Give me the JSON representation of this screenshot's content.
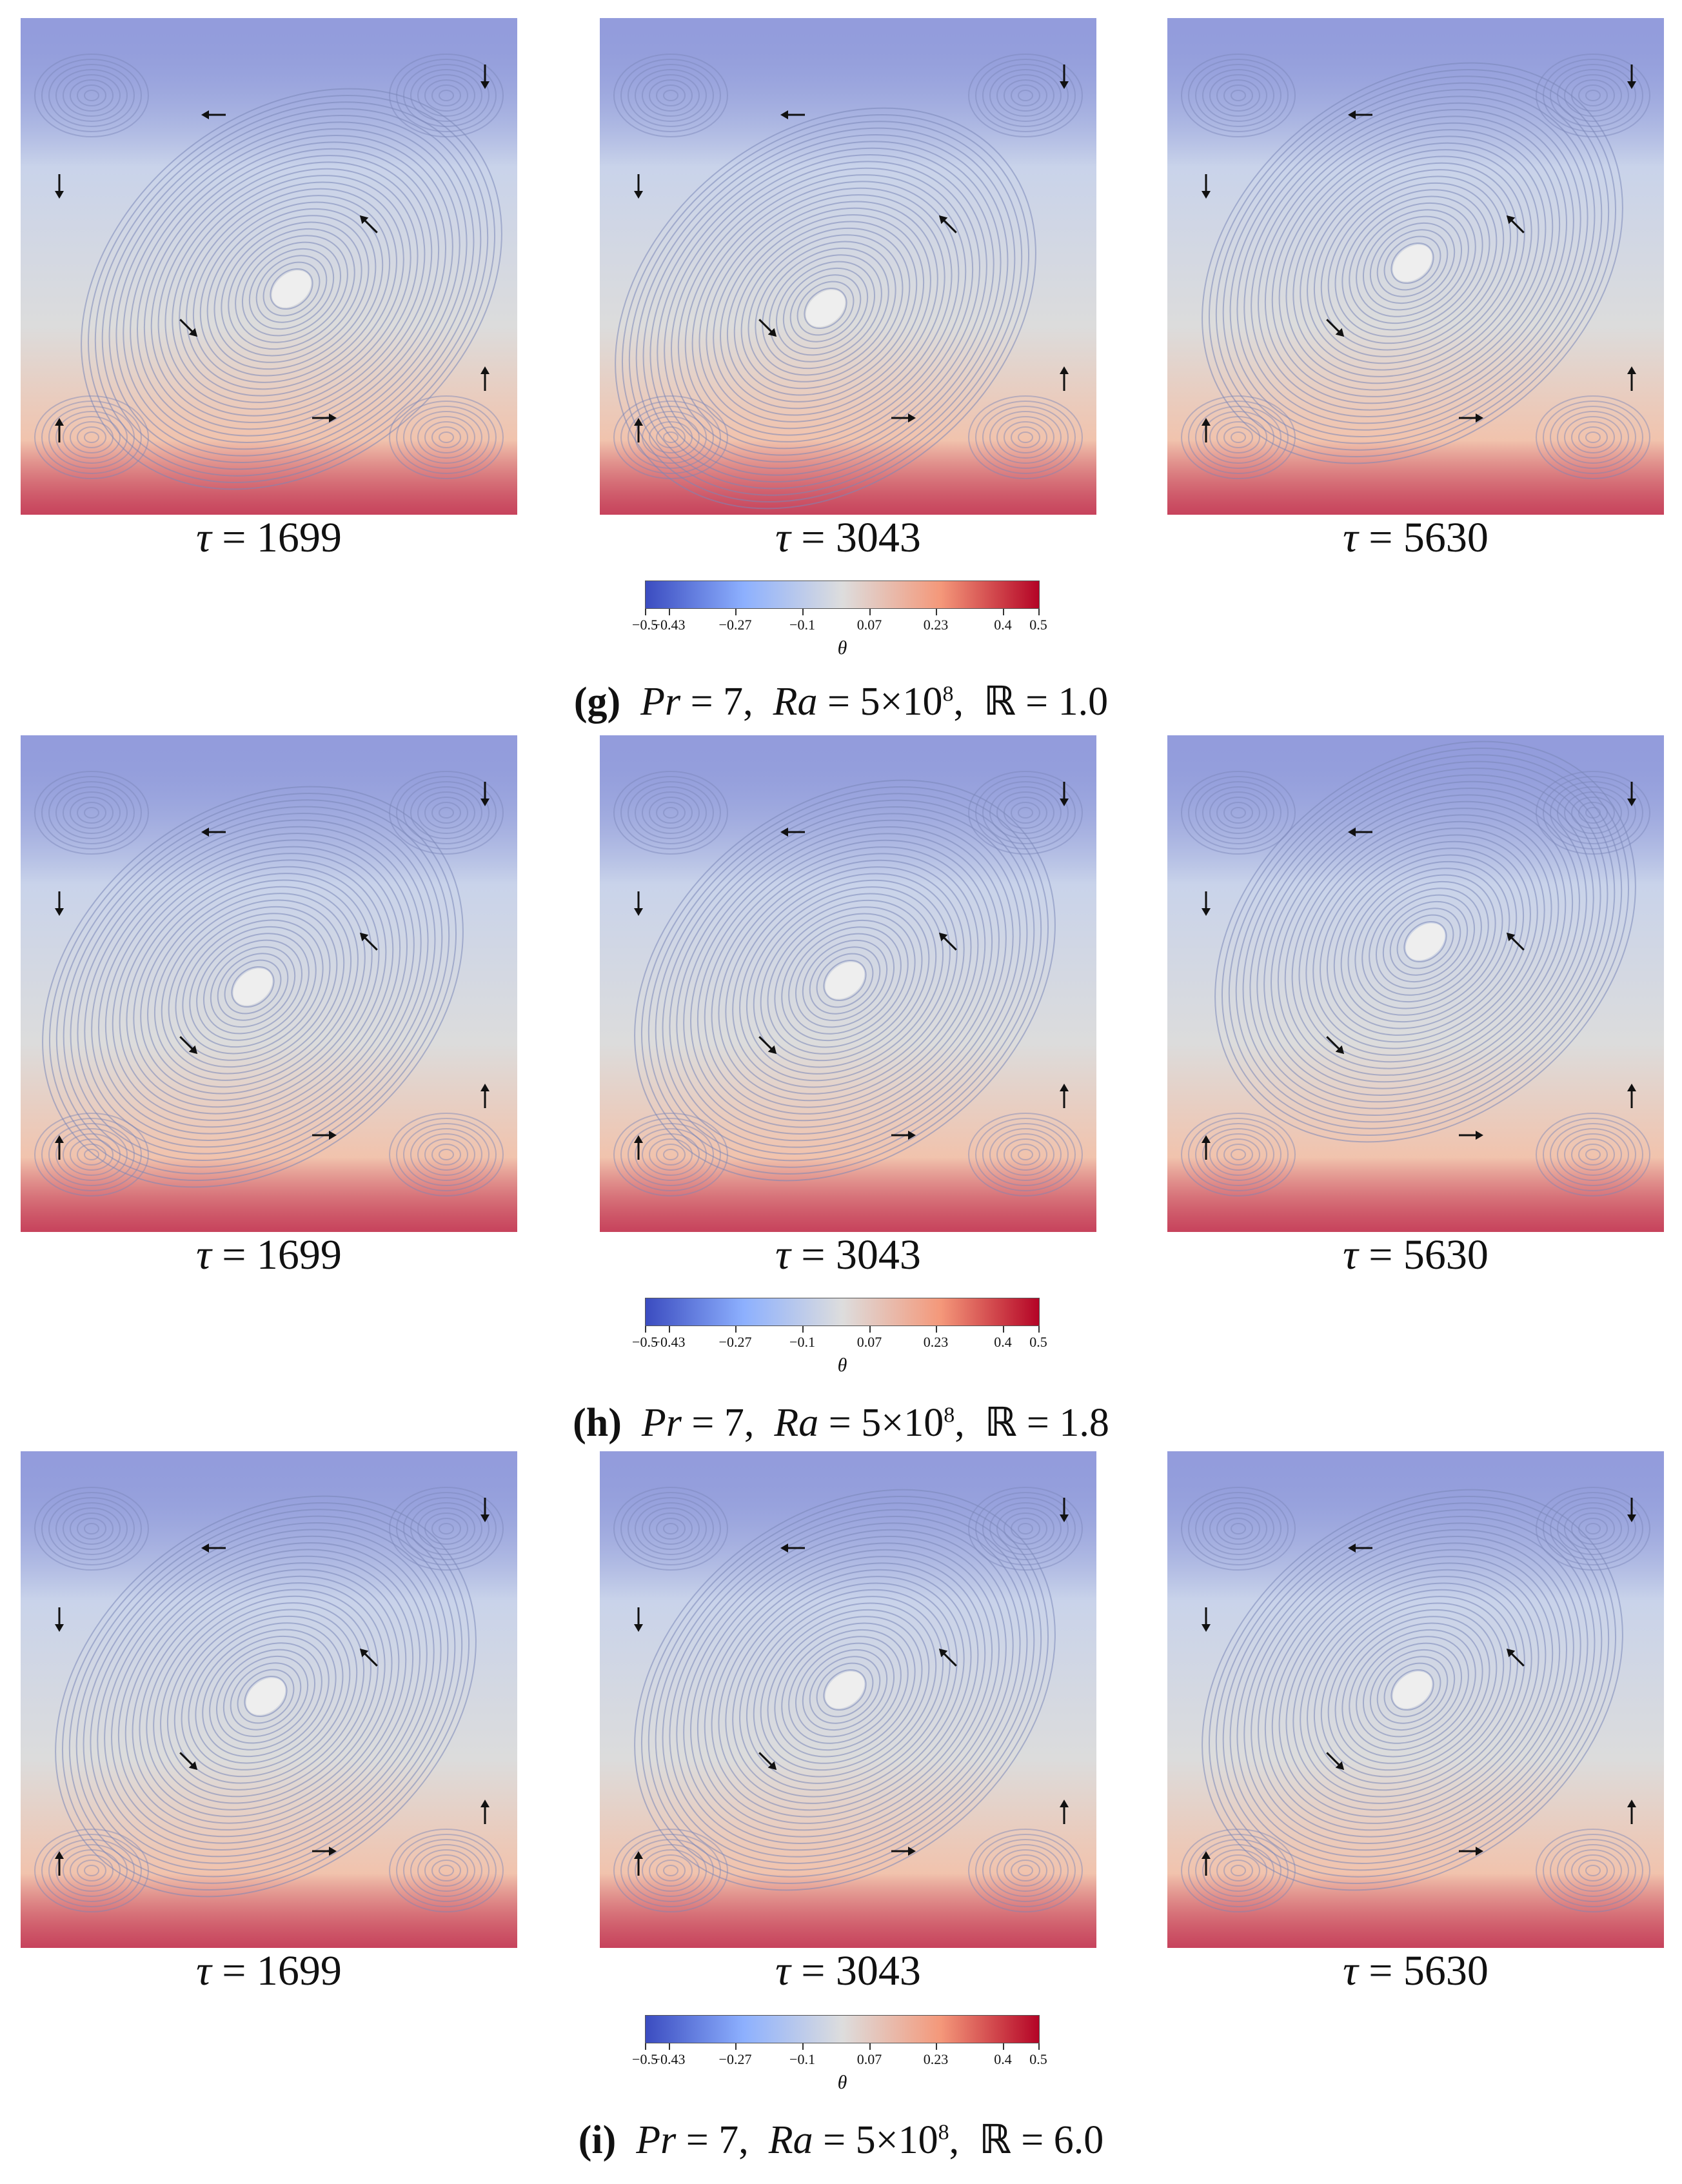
{
  "rows": [
    {
      "label_letter": "(g)",
      "params": {
        "pr_sym": "Pr",
        "pr_val": "7",
        "ra_sym": "Ra",
        "ra_val": "5×10",
        "ra_exp": "8",
        "r_sym": "ℝ",
        "r_val": "1.0"
      },
      "panels": [
        {
          "tau_sym": "τ",
          "tau": "1699"
        },
        {
          "tau_sym": "τ",
          "tau": "3043"
        },
        {
          "tau_sym": "τ",
          "tau": "5630"
        }
      ],
      "colorbar": {
        "ticks": [
          "−0.5",
          "−0.43",
          "−0.27",
          "−0.1",
          "0.07",
          "0.23",
          "0.4",
          "0.5"
        ],
        "var": "θ"
      }
    },
    {
      "label_letter": "(h)",
      "params": {
        "pr_sym": "Pr",
        "pr_val": "7",
        "ra_sym": "Ra",
        "ra_val": "5×10",
        "ra_exp": "8",
        "r_sym": "ℝ",
        "r_val": "1.8"
      },
      "panels": [
        {
          "tau_sym": "τ",
          "tau": "1699"
        },
        {
          "tau_sym": "τ",
          "tau": "3043"
        },
        {
          "tau_sym": "τ",
          "tau": "5630"
        }
      ],
      "colorbar": {
        "ticks": [
          "−0.5",
          "−0.43",
          "−0.27",
          "−0.1",
          "0.07",
          "0.23",
          "0.4",
          "0.5"
        ],
        "var": "θ"
      }
    },
    {
      "label_letter": "(i)",
      "params": {
        "pr_sym": "Pr",
        "pr_val": "7",
        "ra_sym": "Ra",
        "ra_val": "5×10",
        "ra_exp": "8",
        "r_sym": "ℝ",
        "r_val": "6.0"
      },
      "panels": [
        {
          "tau_sym": "τ",
          "tau": "1699"
        },
        {
          "tau_sym": "τ",
          "tau": "3043"
        },
        {
          "tau_sym": "τ",
          "tau": "5630"
        }
      ],
      "colorbar": {
        "ticks": [
          "−0.5",
          "−0.43",
          "−0.27",
          "−0.1",
          "0.07",
          "0.23",
          "0.4",
          "0.5"
        ],
        "var": "θ"
      }
    }
  ],
  "colors": {
    "cold": "#3b4cc0",
    "neutral": "#dddddd",
    "hot": "#b40426",
    "streamline": "#7a86b8",
    "arrow": "#111111"
  }
}
